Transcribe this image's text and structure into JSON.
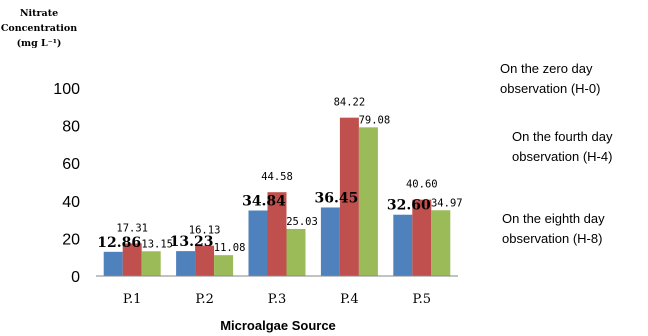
{
  "chart_data": {
    "type": "bar",
    "ylabel_lines": [
      "Nitrate",
      "Concentration",
      "(mg L⁻¹)"
    ],
    "xlabel": "Microalgae Source",
    "categories": [
      "P.1",
      "P.2",
      "P.3",
      "P.4",
      "P.5"
    ],
    "ylim": [
      0,
      100
    ],
    "yticks": [
      "0",
      "20",
      "40",
      "60",
      "80",
      "100"
    ],
    "grid": false,
    "legend_position": "right",
    "series": [
      {
        "name": "On the zero day observation (H-0)",
        "name_lines": [
          "On the zero day",
          "observation (H-0)"
        ],
        "color": "#4f81bd",
        "values": [
          12.86,
          13.23,
          34.84,
          36.45,
          32.6
        ],
        "labels": [
          "12.86",
          "13.23",
          "34.84",
          "36.45",
          "32.60"
        ]
      },
      {
        "name": "On the fourth day observation (H-4)",
        "name_lines": [
          "On the fourth day",
          "observation (H-4)"
        ],
        "color": "#c0504d",
        "values": [
          17.31,
          16.13,
          44.58,
          84.22,
          40.6
        ],
        "labels": [
          "17.31",
          "16.13",
          "44.58",
          "84.22",
          "40.60"
        ]
      },
      {
        "name": "On the eighth day observation (H-8)",
        "name_lines": [
          "On the eighth day",
          "observation (H-8)"
        ],
        "color": "#9bbb59",
        "values": [
          13.15,
          11.08,
          25.03,
          79.08,
          34.97
        ],
        "labels": [
          "13.15",
          "11.08",
          "25.03",
          "79.08",
          "34.97"
        ]
      }
    ]
  }
}
